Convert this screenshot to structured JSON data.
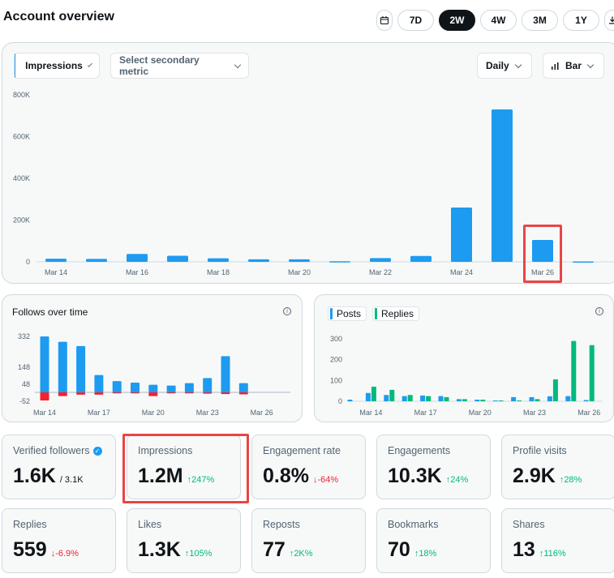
{
  "header": {
    "title": "Account overview"
  },
  "range": {
    "buttons": [
      "7D",
      "2W",
      "4W",
      "3M",
      "1Y"
    ],
    "active": "2W"
  },
  "main_chart": {
    "primary_metric": "Impressions",
    "secondary_placeholder": "Select secondary metric",
    "interval": "Daily",
    "chart_type_label": "Bar",
    "accent_color": "#1d9bf0"
  },
  "follows_card": {
    "title": "Follows over time"
  },
  "posts_card": {
    "legend": [
      "Posts",
      "Replies"
    ],
    "colors": {
      "posts": "#1d9bf0",
      "replies": "#00ba7c"
    }
  },
  "metrics": [
    {
      "label": "Verified followers",
      "value": "1.6K",
      "sub": "/ 3.1K",
      "change": "",
      "dir": ""
    },
    {
      "label": "Impressions",
      "value": "1.2M",
      "sub": "",
      "change": "↑247%",
      "dir": "up"
    },
    {
      "label": "Engagement rate",
      "value": "0.8%",
      "sub": "",
      "change": "↓-64%",
      "dir": "down"
    },
    {
      "label": "Engagements",
      "value": "10.3K",
      "sub": "",
      "change": "↑24%",
      "dir": "up"
    },
    {
      "label": "Profile visits",
      "value": "2.9K",
      "sub": "",
      "change": "↑28%",
      "dir": "up"
    },
    {
      "label": "Replies",
      "value": "559",
      "sub": "",
      "change": "↓-6.9%",
      "dir": "down"
    },
    {
      "label": "Likes",
      "value": "1.3K",
      "sub": "",
      "change": "↑105%",
      "dir": "up"
    },
    {
      "label": "Reposts",
      "value": "77",
      "sub": "",
      "change": "↑2K%",
      "dir": "up"
    },
    {
      "label": "Bookmarks",
      "value": "70",
      "sub": "",
      "change": "↑18%",
      "dir": "up"
    },
    {
      "label": "Shares",
      "value": "13",
      "sub": "",
      "change": "↑116%",
      "dir": "up"
    }
  ],
  "chart_data": [
    {
      "type": "bar",
      "title": "",
      "categories": [
        "Mar 14",
        "Mar 15",
        "Mar 16",
        "Mar 17",
        "Mar 18",
        "Mar 19",
        "Mar 20",
        "Mar 21",
        "Mar 22",
        "Mar 23",
        "Mar 24",
        "Mar 25",
        "Mar 26",
        "Mar 27"
      ],
      "tick_labels": [
        "Mar 14",
        "Mar 16",
        "Mar 18",
        "Mar 20",
        "Mar 22",
        "Mar 24",
        "Mar 26"
      ],
      "series": [
        {
          "values": [
            15000,
            14000,
            38000,
            29000,
            17000,
            12000,
            12000,
            3000,
            18000,
            28000,
            260000,
            730000,
            105000,
            2000
          ]
        }
      ],
      "yticks": [
        "0",
        "200K",
        "400K",
        "600K",
        "800K"
      ],
      "ylim": [
        0,
        800000
      ],
      "grid": false
    },
    {
      "type": "bar",
      "title": "Follows over time",
      "categories": [
        "Mar 14",
        "Mar 15",
        "Mar 16",
        "Mar 17",
        "Mar 18",
        "Mar 19",
        "Mar 20",
        "Mar 21",
        "Mar 22",
        "Mar 23",
        "Mar 24",
        "Mar 25",
        "Mar 26"
      ],
      "tick_labels": [
        "Mar 14",
        "Mar 17",
        "Mar 20",
        "Mar 23",
        "Mar 26"
      ],
      "series": [
        {
          "values": [
            332,
            300,
            275,
            103,
            67,
            58,
            45,
            40,
            55,
            85,
            215,
            55,
            0
          ]
        },
        {
          "values": [
            -48,
            -22,
            -14,
            -14,
            -6,
            -6,
            -22,
            -6,
            -6,
            -8,
            -10,
            -12,
            0
          ]
        }
      ],
      "yticks": [
        "332",
        "148",
        "48",
        "-52"
      ],
      "ylim": [
        -52,
        332
      ],
      "grid": false
    },
    {
      "type": "bar",
      "title": "",
      "categories": [
        "Mar 13",
        "Mar 14",
        "Mar 15",
        "Mar 16",
        "Mar 17",
        "Mar 18",
        "Mar 19",
        "Mar 20",
        "Mar 21",
        "Mar 22",
        "Mar 23",
        "Mar 24",
        "Mar 25",
        "Mar 26"
      ],
      "tick_labels": [
        "Mar 14",
        "Mar 17",
        "Mar 20",
        "Mar 23",
        "Mar 26"
      ],
      "series": [
        {
          "name": "Posts",
          "values": [
            8,
            40,
            30,
            25,
            28,
            25,
            10,
            8,
            4,
            20,
            20,
            24,
            25,
            6
          ]
        },
        {
          "name": "Replies",
          "values": [
            0,
            70,
            55,
            30,
            25,
            20,
            10,
            8,
            4,
            4,
            10,
            105,
            290,
            270
          ]
        }
      ],
      "yticks": [
        "0",
        "100",
        "200",
        "300"
      ],
      "ylim": [
        0,
        330
      ],
      "grid": false
    }
  ]
}
